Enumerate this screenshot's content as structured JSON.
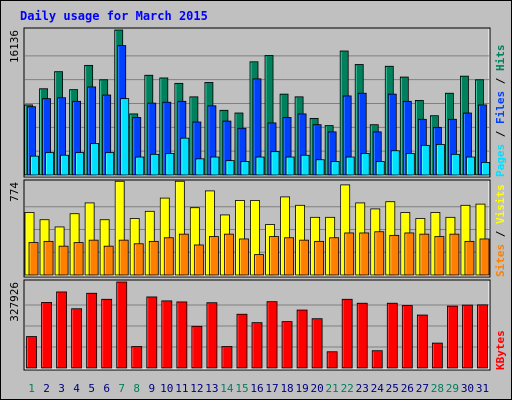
{
  "title": "Daily usage for March 2015",
  "colors": {
    "background": "#c0c0c0",
    "panel": "#c0c0c0",
    "hits": "#00805c",
    "files": "#0040ff",
    "pages": "#00e0ff",
    "visits": "#ffff00",
    "sites": "#ff8000",
    "kbytes": "#ff0000",
    "title_text": "#0000ff",
    "weekend_day": "#00805c",
    "weekday": "#000080",
    "grid": "#808080"
  },
  "chart_data": [
    {
      "type": "bar",
      "panel": "hits-files-pages",
      "ymax_label": "16136",
      "ylim": [
        0,
        16136
      ],
      "legend": [
        {
          "text": "Pages",
          "color_key": "pages"
        },
        {
          "text": "Files",
          "color_key": "files"
        },
        {
          "text": "Hits",
          "color_key": "hits"
        }
      ],
      "categories": [
        "1",
        "2",
        "3",
        "4",
        "5",
        "6",
        "7",
        "8",
        "9",
        "10",
        "11",
        "12",
        "13",
        "14",
        "15",
        "16",
        "17",
        "18",
        "19",
        "20",
        "21",
        "22",
        "23",
        "24",
        "25",
        "26",
        "27",
        "28",
        "29",
        "30",
        "31"
      ],
      "series": [
        {
          "name": "Hits",
          "color_key": "hits",
          "values": [
            7800,
            9600,
            11500,
            9500,
            12200,
            10600,
            16136,
            6800,
            11100,
            10800,
            10200,
            8700,
            10300,
            7200,
            6900,
            12600,
            13300,
            9000,
            8700,
            6300,
            5500,
            13800,
            12300,
            5600,
            12100,
            10900,
            8300,
            6600,
            9100,
            11000,
            10600
          ]
        },
        {
          "name": "Files",
          "color_key": "files",
          "values": [
            7600,
            8500,
            8600,
            8200,
            9800,
            8900,
            14400,
            6400,
            8000,
            8100,
            8200,
            5900,
            7700,
            6000,
            5200,
            10700,
            5800,
            6400,
            6800,
            5600,
            4800,
            8800,
            9100,
            4800,
            9000,
            8200,
            6200,
            5300,
            6200,
            6900,
            7800
          ]
        },
        {
          "name": "Pages",
          "color_key": "pages",
          "values": [
            2100,
            2500,
            2200,
            2500,
            3500,
            2500,
            8500,
            2000,
            2300,
            2400,
            4100,
            1800,
            2000,
            1600,
            1500,
            2000,
            2600,
            2000,
            2200,
            1700,
            1500,
            2000,
            2400,
            1500,
            2700,
            2400,
            3300,
            3400,
            2300,
            2000,
            1400
          ]
        }
      ]
    },
    {
      "type": "bar",
      "panel": "visits-sites",
      "ymax_label": "774",
      "ylim": [
        0,
        774
      ],
      "legend": [
        {
          "text": "Sites",
          "color_key": "sites"
        },
        {
          "text": "Visits",
          "color_key": "visits"
        }
      ],
      "categories": [
        "1",
        "2",
        "3",
        "4",
        "5",
        "6",
        "7",
        "8",
        "9",
        "10",
        "11",
        "12",
        "13",
        "14",
        "15",
        "16",
        "17",
        "18",
        "19",
        "20",
        "21",
        "22",
        "23",
        "24",
        "25",
        "26",
        "27",
        "28",
        "29",
        "30",
        "31"
      ],
      "series": [
        {
          "name": "Visits",
          "color_key": "visits",
          "values": [
            520,
            460,
            400,
            510,
            600,
            460,
            780,
            470,
            530,
            640,
            780,
            560,
            700,
            500,
            620,
            620,
            420,
            650,
            580,
            480,
            480,
            750,
            600,
            550,
            610,
            520,
            470,
            520,
            480,
            580,
            590
          ]
        },
        {
          "name": "Sites",
          "color_key": "sites",
          "values": [
            270,
            280,
            240,
            270,
            290,
            240,
            290,
            260,
            280,
            310,
            340,
            250,
            320,
            340,
            300,
            170,
            320,
            310,
            290,
            280,
            310,
            350,
            350,
            360,
            330,
            350,
            340,
            320,
            340,
            280,
            300
          ]
        }
      ]
    },
    {
      "type": "bar",
      "panel": "kbytes",
      "ymax_label": "327926",
      "ylim": [
        0,
        327926
      ],
      "legend": [
        {
          "text": "KBytes",
          "color_key": "kbytes"
        }
      ],
      "categories": [
        "1",
        "2",
        "3",
        "4",
        "5",
        "6",
        "7",
        "8",
        "9",
        "10",
        "11",
        "12",
        "13",
        "14",
        "15",
        "16",
        "17",
        "18",
        "19",
        "20",
        "21",
        "22",
        "23",
        "24",
        "25",
        "26",
        "27",
        "28",
        "29",
        "30",
        "31"
      ],
      "series": [
        {
          "name": "KBytes",
          "color_key": "kbytes",
          "values": [
            120000,
            250000,
            290000,
            226000,
            285000,
            262000,
            327926,
            82000,
            271000,
            256000,
            252000,
            159000,
            249000,
            82000,
            205000,
            173000,
            253000,
            177000,
            221000,
            188000,
            62000,
            262000,
            247000,
            66000,
            247000,
            238000,
            202000,
            95000,
            236000,
            240000,
            241000
          ]
        }
      ]
    }
  ],
  "weekend_days": [
    "1",
    "7",
    "8",
    "14",
    "15",
    "21",
    "22",
    "28",
    "29"
  ]
}
